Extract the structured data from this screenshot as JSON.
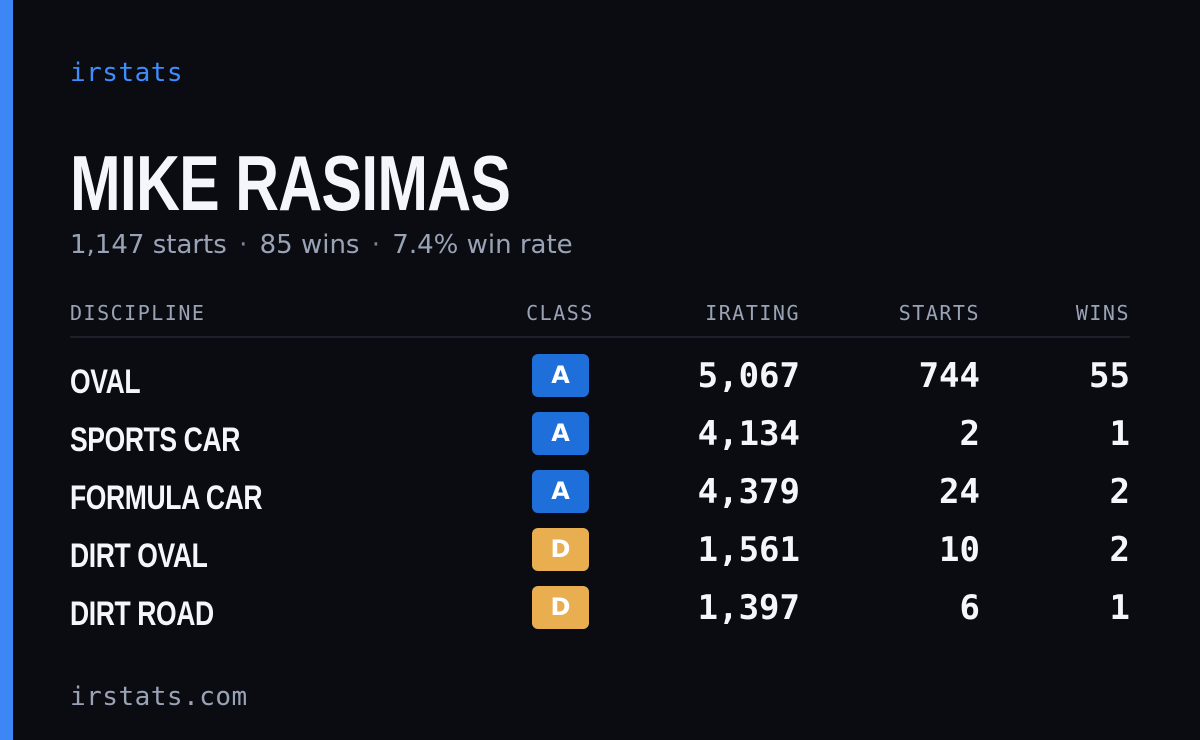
{
  "brand": "irstats",
  "driver": {
    "name": "MIKE RASIMAS",
    "starts_text": "1,147 starts",
    "wins_text": "85 wins",
    "winrate_text": "7.4% win rate",
    "separator": "·"
  },
  "table": {
    "headers": {
      "discipline": "DISCIPLINE",
      "class": "CLASS",
      "irating": "IRATING",
      "starts": "STARTS",
      "wins": "WINS"
    },
    "rows": [
      {
        "discipline": "OVAL",
        "class": "A",
        "irating": "5,067",
        "starts": "744",
        "wins": "55"
      },
      {
        "discipline": "SPORTS CAR",
        "class": "A",
        "irating": "4,134",
        "starts": "2",
        "wins": "1"
      },
      {
        "discipline": "FORMULA CAR",
        "class": "A",
        "irating": "4,379",
        "starts": "24",
        "wins": "2"
      },
      {
        "discipline": "DIRT OVAL",
        "class": "D",
        "irating": "1,561",
        "starts": "10",
        "wins": "2"
      },
      {
        "discipline": "DIRT ROAD",
        "class": "D",
        "irating": "1,397",
        "starts": "6",
        "wins": "1"
      }
    ]
  },
  "colors": {
    "accent": "#3d86f5",
    "class_a": "#1e6fd9",
    "class_d": "#e9ae4f",
    "background": "#0a0c12"
  },
  "footer": "irstats.com"
}
